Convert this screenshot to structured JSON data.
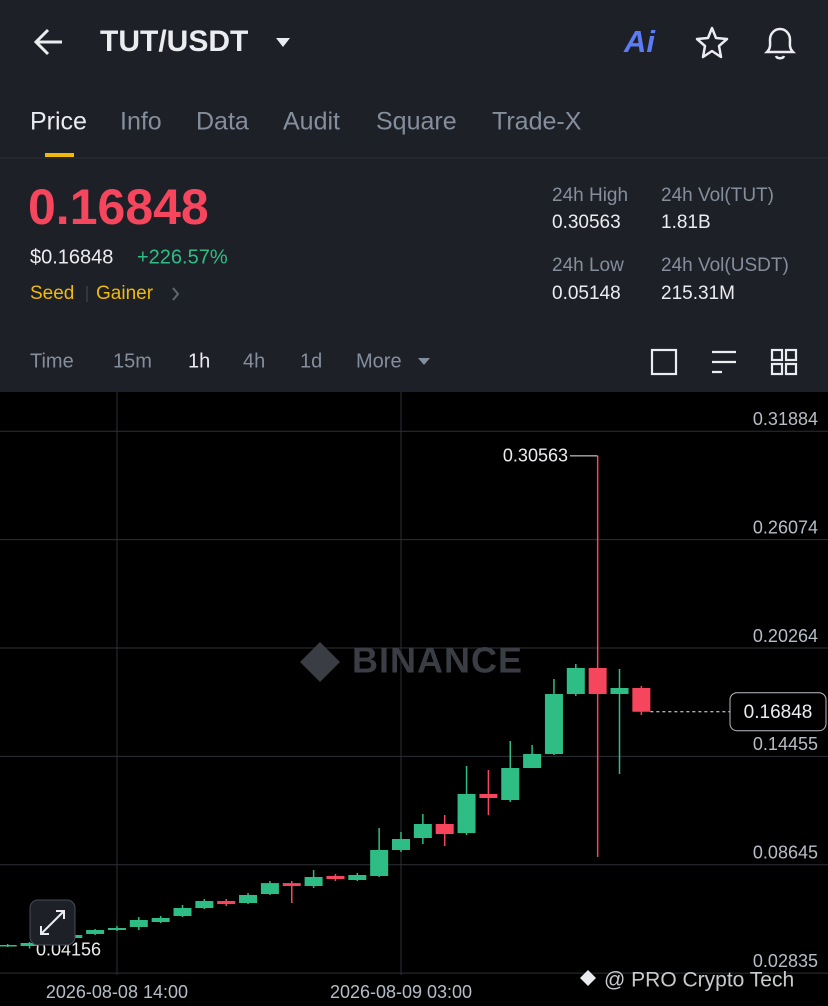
{
  "header": {
    "pair": "TUT/USDT",
    "ai_button": "Ai"
  },
  "tabs": [
    "Price",
    "Info",
    "Data",
    "Audit",
    "Square",
    "Trade-X"
  ],
  "ticker": {
    "price": "0.16848",
    "price_usd": "$0.16848",
    "change": "+226.57%",
    "tags": [
      "Seed",
      "Gainer"
    ]
  },
  "stats": [
    {
      "label": "24h High",
      "value": "0.30563"
    },
    {
      "label": "24h Vol(TUT)",
      "value": "1.81B"
    },
    {
      "label": "24h Low",
      "value": "0.05148"
    },
    {
      "label": "24h Vol(USDT)",
      "value": "215.31M"
    }
  ],
  "intervals": [
    "Time",
    "15m",
    "1h",
    "4h",
    "1d",
    "More"
  ],
  "chart_data": {
    "type": "candlestick",
    "watermark": "BINANCE",
    "categories": [
      null,
      null,
      null,
      null,
      null,
      "2026-08-08 14:00",
      null,
      null,
      null,
      null,
      null,
      null,
      null,
      null,
      null,
      null,
      null,
      null,
      "2026-08-09 03:00",
      null,
      null,
      null,
      null,
      null,
      null,
      null,
      null,
      null,
      null,
      null
    ],
    "open": [
      0.04292,
      0.04292,
      0.04452,
      0.0472,
      0.04935,
      0.05149,
      0.0531,
      0.05578,
      0.05899,
      0.06328,
      0.06703,
      0.06596,
      0.07078,
      0.07664,
      0.07507,
      0.08043,
      0.07829,
      0.08043,
      0.09437,
      0.1008,
      0.1083,
      0.10348,
      0.12438,
      0.12117,
      0.13832,
      0.14582,
      0.17798,
      0.19192,
      0.17798,
      0.1812
    ],
    "high": [
      0.04399,
      0.04506,
      0.04613,
      0.04935,
      0.05203,
      0.05363,
      0.05846,
      0.05899,
      0.06489,
      0.0681,
      0.0681,
      0.07132,
      0.07775,
      0.07775,
      0.08365,
      0.0815,
      0.08204,
      0.10616,
      0.10402,
      0.11366,
      0.11312,
      0.13939,
      0.13725,
      0.15279,
      0.15065,
      0.18602,
      0.19406,
      0.30563,
      0.19138,
      0.18228
    ],
    "low": [
      0.04238,
      0.04156,
      0.04399,
      0.04667,
      0.04881,
      0.05096,
      0.05149,
      0.05524,
      0.05846,
      0.06274,
      0.06435,
      0.06542,
      0.07025,
      0.06596,
      0.074,
      0.07775,
      0.07775,
      0.0799,
      0.0933,
      0.09758,
      0.09651,
      0.10241,
      0.11313,
      0.1201,
      0.13832,
      0.14529,
      0.17691,
      0.09062,
      0.1351,
      0.16673
    ],
    "close": [
      0.04345,
      0.04452,
      0.04559,
      0.04881,
      0.05149,
      0.05256,
      0.05685,
      0.05792,
      0.06328,
      0.06703,
      0.06542,
      0.07025,
      0.07664,
      0.07507,
      0.0799,
      0.07882,
      0.08097,
      0.09437,
      0.10026,
      0.1083,
      0.10294,
      0.12438,
      0.12224,
      0.13832,
      0.14582,
      0.17798,
      0.19192,
      0.17798,
      0.1812,
      0.16848
    ],
    "up_color": "#2ebd85",
    "down_color": "#f6465d",
    "ylim": [
      0.02737,
      0.33986
    ],
    "yticks": [
      0.02835,
      0.08645,
      0.14455,
      0.20264,
      0.26074,
      0.31884
    ],
    "grid": true
  },
  "credit": "@ PRO Crypto Tech"
}
